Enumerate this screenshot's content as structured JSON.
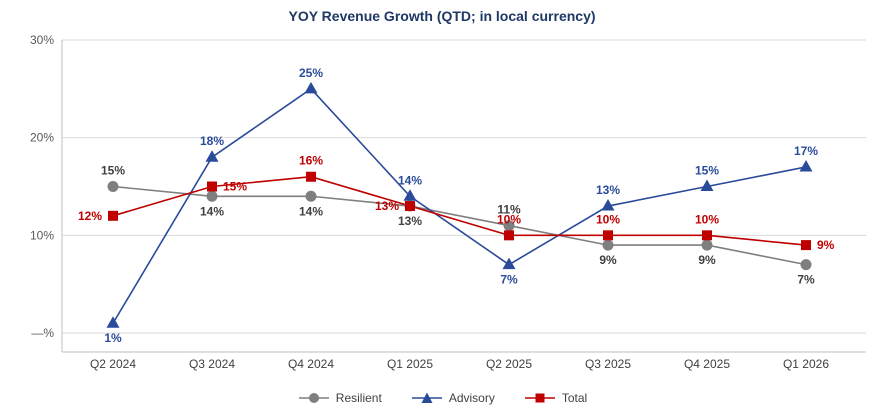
{
  "chart_data": {
    "type": "line",
    "title": "YOY Revenue Growth (QTD; in local currency)",
    "categories": [
      "Q2 2024",
      "Q3 2024",
      "Q4 2024",
      "Q1 2025",
      "Q2 2025",
      "Q3 2025",
      "Q4 2025",
      "Q1 2026"
    ],
    "series": [
      {
        "name": "Resilient",
        "marker": "circle",
        "color": "#7f7f7f",
        "label_color": "#404040",
        "values": [
          15,
          14,
          14,
          13,
          11,
          9,
          9,
          7
        ]
      },
      {
        "name": "Advisory",
        "marker": "triangle",
        "color": "#2a4a9a",
        "label_color": "#2a4a9a",
        "values": [
          1,
          18,
          25,
          14,
          7,
          13,
          15,
          17
        ]
      },
      {
        "name": "Total",
        "marker": "square",
        "color": "#c00000",
        "label_color": "#c00000",
        "values": [
          12,
          15,
          16,
          13,
          10,
          10,
          10,
          9
        ]
      }
    ],
    "y_ticks": [
      {
        "value": 30,
        "label": "30%"
      },
      {
        "value": 20,
        "label": "20%"
      },
      {
        "value": 10,
        "label": "10%"
      },
      {
        "value": 0,
        "label": "—%"
      }
    ],
    "ylim": [
      -2,
      31
    ],
    "grid": "horizontal",
    "legend_position": "bottom",
    "value_suffix": "%",
    "colors": {
      "title": "#1f3864",
      "grid": "#d9d9d9",
      "axis": "#bfbfbf",
      "tick_text": "#595959",
      "category_text": "#404040"
    }
  }
}
